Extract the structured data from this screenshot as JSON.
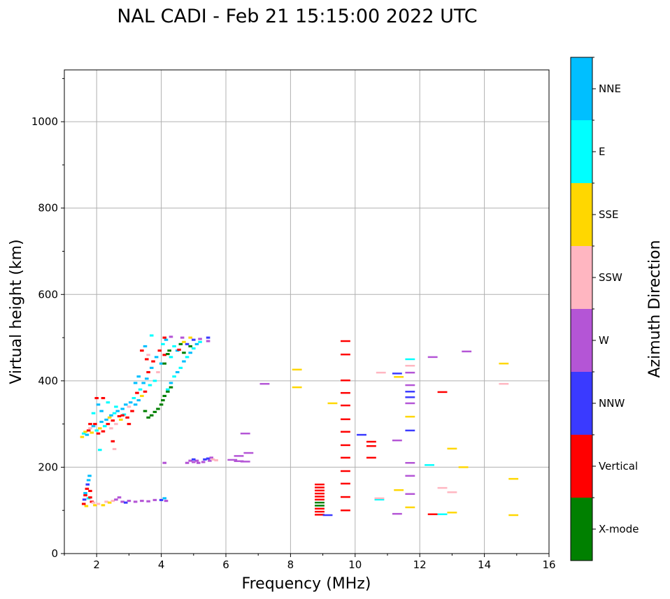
{
  "chart_data": {
    "type": "scatter",
    "title": "NAL CADI - Feb 21 15:15:00 2022 UTC",
    "xlabel": "Frequency (MHz)",
    "ylabel": "Virtual height (km)",
    "xlim": [
      1,
      16
    ],
    "ylim": [
      0,
      1120
    ],
    "xticks": [
      2,
      4,
      6,
      8,
      10,
      12,
      14,
      16
    ],
    "yticks": [
      0,
      200,
      400,
      600,
      800,
      1000
    ],
    "grid": true,
    "colorbar": {
      "label": "Azimuth Direction",
      "categories": [
        "X-mode",
        "Vertical",
        "NNW",
        "W",
        "SSW",
        "SSE",
        "E",
        "NNE"
      ],
      "colors": [
        "#008000",
        "#ff0000",
        "#3a3aff",
        "#b455d6",
        "#ffb6c1",
        "#ffd700",
        "#00ffff",
        "#00bfff"
      ]
    },
    "points_format": "[frequency_MHz, virtual_height_km, category_index]",
    "points": [
      [
        1.55,
        270,
        5
      ],
      [
        1.6,
        278,
        6
      ],
      [
        1.65,
        282,
        5
      ],
      [
        1.7,
        275,
        7
      ],
      [
        1.75,
        285,
        1
      ],
      [
        1.8,
        290,
        4
      ],
      [
        1.85,
        280,
        5
      ],
      [
        1.9,
        295,
        7
      ],
      [
        1.95,
        300,
        1
      ],
      [
        2.0,
        285,
        6
      ],
      [
        2.05,
        278,
        1
      ],
      [
        2.1,
        290,
        5
      ],
      [
        2.15,
        305,
        7
      ],
      [
        2.2,
        283,
        1
      ],
      [
        2.25,
        295,
        6
      ],
      [
        2.3,
        310,
        7
      ],
      [
        2.35,
        300,
        1
      ],
      [
        2.4,
        315,
        5
      ],
      [
        2.45,
        320,
        7
      ],
      [
        2.5,
        308,
        1
      ],
      [
        2.55,
        325,
        6
      ],
      [
        2.6,
        300,
        4
      ],
      [
        2.65,
        330,
        7
      ],
      [
        2.7,
        318,
        1
      ],
      [
        2.75,
        310,
        5
      ],
      [
        2.8,
        335,
        7
      ],
      [
        2.85,
        322,
        6
      ],
      [
        2.9,
        345,
        7
      ],
      [
        2.95,
        315,
        1
      ],
      [
        3.0,
        340,
        4
      ],
      [
        3.05,
        350,
        7
      ],
      [
        3.1,
        330,
        1
      ],
      [
        3.15,
        360,
        6
      ],
      [
        3.2,
        345,
        7
      ],
      [
        3.25,
        372,
        1
      ],
      [
        3.3,
        355,
        7
      ],
      [
        3.35,
        380,
        6
      ],
      [
        3.4,
        365,
        5
      ],
      [
        3.45,
        395,
        7
      ],
      [
        3.5,
        375,
        1
      ],
      [
        3.55,
        405,
        7
      ],
      [
        3.6,
        420,
        1
      ],
      [
        3.65,
        390,
        6
      ],
      [
        3.7,
        430,
        7
      ],
      [
        3.75,
        445,
        1
      ],
      [
        3.8,
        400,
        6
      ],
      [
        3.85,
        455,
        7
      ],
      [
        3.9,
        420,
        4
      ],
      [
        3.95,
        470,
        1
      ],
      [
        4.0,
        440,
        7
      ],
      [
        4.05,
        485,
        6
      ],
      [
        4.1,
        460,
        1
      ],
      [
        4.15,
        495,
        7
      ],
      [
        3.5,
        480,
        7
      ],
      [
        3.7,
        505,
        6
      ],
      [
        3.4,
        470,
        1
      ],
      [
        3.6,
        460,
        4
      ],
      [
        2.05,
        345,
        7
      ],
      [
        2.2,
        360,
        1
      ],
      [
        1.9,
        325,
        6
      ],
      [
        2.15,
        330,
        7
      ],
      [
        2.35,
        350,
        6
      ],
      [
        2.6,
        340,
        6
      ],
      [
        2.8,
        320,
        1
      ],
      [
        3.0,
        300,
        1
      ],
      [
        2.45,
        290,
        4
      ],
      [
        3.3,
        410,
        7
      ],
      [
        3.55,
        450,
        1
      ],
      [
        3.2,
        395,
        7
      ],
      [
        1.8,
        300,
        1
      ],
      [
        2.1,
        240,
        6
      ],
      [
        2.5,
        260,
        1
      ],
      [
        2.55,
        242,
        4
      ],
      [
        2.0,
        360,
        1
      ],
      [
        4.2,
        380,
        6
      ],
      [
        4.3,
        395,
        7
      ],
      [
        4.4,
        410,
        6
      ],
      [
        4.5,
        420,
        7
      ],
      [
        4.6,
        430,
        6
      ],
      [
        4.7,
        445,
        7
      ],
      [
        4.8,
        455,
        6
      ],
      [
        4.9,
        465,
        7
      ],
      [
        5.0,
        475,
        6
      ],
      [
        5.1,
        485,
        7
      ],
      [
        5.2,
        490,
        6
      ],
      [
        4.5,
        470,
        7
      ],
      [
        4.7,
        490,
        5
      ],
      [
        4.9,
        500,
        5
      ],
      [
        4.65,
        500,
        3
      ],
      [
        5.0,
        495,
        2
      ],
      [
        5.2,
        497,
        3
      ],
      [
        5.45,
        500,
        2
      ],
      [
        5.45,
        492,
        3
      ],
      [
        4.4,
        480,
        6
      ],
      [
        4.8,
        485,
        2
      ],
      [
        4.6,
        485,
        0
      ],
      [
        4.1,
        500,
        1
      ],
      [
        4.3,
        502,
        3
      ],
      [
        4.9,
        480,
        0
      ],
      [
        4.55,
        472,
        1
      ],
      [
        4.7,
        465,
        0
      ],
      [
        4.3,
        455,
        6
      ],
      [
        3.6,
        315,
        0
      ],
      [
        3.7,
        320,
        0
      ],
      [
        3.8,
        328,
        0
      ],
      [
        3.9,
        335,
        0
      ],
      [
        4.0,
        345,
        0
      ],
      [
        4.05,
        355,
        0
      ],
      [
        4.1,
        365,
        0
      ],
      [
        4.2,
        375,
        0
      ],
      [
        4.3,
        385,
        0
      ],
      [
        4.1,
        440,
        0
      ],
      [
        4.2,
        462,
        0
      ],
      [
        4.25,
        470,
        0
      ],
      [
        3.5,
        330,
        0
      ],
      [
        1.6,
        115,
        1
      ],
      [
        1.62,
        125,
        2
      ],
      [
        1.65,
        135,
        1
      ],
      [
        1.7,
        150,
        1
      ],
      [
        1.72,
        160,
        2
      ],
      [
        1.75,
        170,
        7
      ],
      [
        1.78,
        180,
        7
      ],
      [
        1.8,
        145,
        1
      ],
      [
        1.85,
        120,
        1
      ],
      [
        1.68,
        110,
        5
      ],
      [
        1.9,
        118,
        4
      ],
      [
        1.95,
        112,
        5
      ],
      [
        2.05,
        115,
        4
      ],
      [
        2.2,
        112,
        5
      ],
      [
        2.3,
        120,
        4
      ],
      [
        2.4,
        118,
        5
      ],
      [
        2.5,
        122,
        4
      ],
      [
        2.6,
        125,
        3
      ],
      [
        2.7,
        130,
        3
      ],
      [
        2.8,
        120,
        3
      ],
      [
        2.9,
        118,
        2
      ],
      [
        3.0,
        122,
        3
      ],
      [
        3.2,
        120,
        3
      ],
      [
        3.4,
        122,
        3
      ],
      [
        3.6,
        121,
        3
      ],
      [
        3.8,
        124,
        3
      ],
      [
        4.0,
        124,
        2
      ],
      [
        4.1,
        128,
        7
      ],
      [
        4.15,
        122,
        3
      ],
      [
        1.75,
        128,
        6
      ],
      [
        1.65,
        140,
        7
      ],
      [
        1.8,
        130,
        1
      ],
      [
        4.1,
        210,
        3
      ],
      [
        4.8,
        210,
        3
      ],
      [
        4.9,
        215,
        3
      ],
      [
        5.0,
        212,
        3
      ],
      [
        5.1,
        215,
        3
      ],
      [
        5.15,
        210,
        3
      ],
      [
        5.3,
        212,
        3
      ],
      [
        5.35,
        218,
        2
      ],
      [
        5.45,
        220,
        2
      ],
      [
        5.5,
        215,
        3
      ],
      [
        5.55,
        222,
        3
      ],
      [
        5.6,
        218,
        4
      ],
      [
        5.7,
        216,
        4
      ],
      [
        5.0,
        218,
        2
      ],
      [
        6.6,
        278,
        3
      ],
      [
        6.4,
        226,
        3
      ],
      [
        6.4,
        214,
        3
      ],
      [
        6.6,
        213,
        3
      ],
      [
        6.7,
        233,
        3
      ],
      [
        6.2,
        217,
        3
      ],
      [
        7.2,
        393,
        3
      ],
      [
        8.2,
        426,
        5
      ],
      [
        8.2,
        385,
        5
      ],
      [
        9.3,
        348,
        5
      ],
      [
        9.7,
        492,
        1
      ],
      [
        9.7,
        461,
        1
      ],
      [
        9.7,
        401,
        1
      ],
      [
        9.7,
        372,
        1
      ],
      [
        9.7,
        343,
        1
      ],
      [
        9.7,
        311,
        1
      ],
      [
        9.7,
        282,
        1
      ],
      [
        9.7,
        251,
        1
      ],
      [
        9.7,
        222,
        1
      ],
      [
        9.7,
        191,
        1
      ],
      [
        9.7,
        162,
        1
      ],
      [
        9.7,
        131,
        1
      ],
      [
        9.7,
        100,
        1
      ],
      [
        8.9,
        160,
        1
      ],
      [
        8.9,
        153,
        1
      ],
      [
        8.9,
        146,
        1
      ],
      [
        8.9,
        139,
        1
      ],
      [
        8.9,
        132,
        1
      ],
      [
        8.9,
        125,
        1
      ],
      [
        8.9,
        118,
        0
      ],
      [
        8.9,
        111,
        0
      ],
      [
        8.9,
        104,
        1
      ],
      [
        8.9,
        97,
        1
      ],
      [
        8.9,
        90,
        1
      ],
      [
        9.15,
        89,
        2
      ],
      [
        10.2,
        275,
        2
      ],
      [
        10.5,
        259,
        1
      ],
      [
        10.5,
        249,
        1
      ],
      [
        10.5,
        222,
        1
      ],
      [
        10.8,
        419,
        4
      ],
      [
        10.75,
        125,
        6
      ],
      [
        10.75,
        128,
        4
      ],
      [
        11.3,
        262,
        3
      ],
      [
        11.3,
        92,
        3
      ],
      [
        11.35,
        147,
        5
      ],
      [
        11.35,
        409,
        5
      ],
      [
        11.3,
        417,
        2
      ],
      [
        11.7,
        450,
        6
      ],
      [
        11.7,
        435,
        4
      ],
      [
        11.7,
        419,
        3
      ],
      [
        11.7,
        390,
        3
      ],
      [
        11.7,
        375,
        2
      ],
      [
        11.7,
        362,
        2
      ],
      [
        11.7,
        348,
        3
      ],
      [
        11.7,
        317,
        5
      ],
      [
        11.7,
        285,
        2
      ],
      [
        11.7,
        210,
        3
      ],
      [
        11.7,
        180,
        3
      ],
      [
        11.7,
        138,
        3
      ],
      [
        11.7,
        107,
        5
      ],
      [
        12.4,
        455,
        3
      ],
      [
        12.3,
        205,
        6
      ],
      [
        12.4,
        91,
        1
      ],
      [
        12.7,
        91,
        6
      ],
      [
        12.7,
        374,
        1
      ],
      [
        12.7,
        152,
        4
      ],
      [
        13.0,
        142,
        4
      ],
      [
        13.0,
        95,
        5
      ],
      [
        13.0,
        243,
        5
      ],
      [
        13.35,
        200,
        5
      ],
      [
        13.45,
        468,
        3
      ],
      [
        14.6,
        440,
        5
      ],
      [
        14.6,
        393,
        4
      ],
      [
        14.9,
        173,
        5
      ],
      [
        14.9,
        89,
        5
      ]
    ]
  }
}
